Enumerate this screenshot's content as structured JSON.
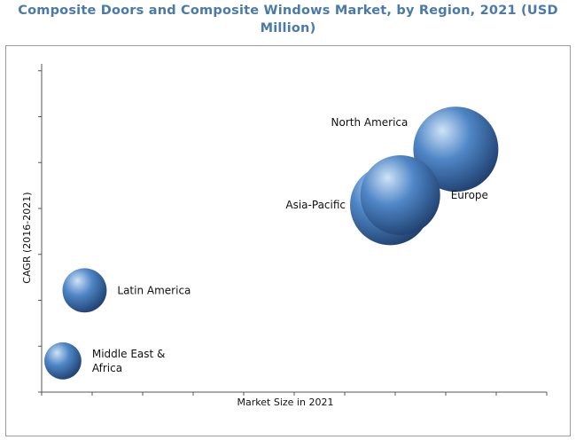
{
  "chart_data": {
    "type": "bubble",
    "title": "Composite Doors and Composite Windows Market, by Region, 2021 (USD Million)",
    "xlabel": "Market Size in 2021",
    "ylabel": "CAGR (2016-2021)",
    "xlim": [
      0,
      100
    ],
    "ylim": [
      0,
      100
    ],
    "gridlines": false,
    "series": [
      {
        "name": "North America",
        "x": 82,
        "y": 74,
        "size": 100,
        "label_position": "left"
      },
      {
        "name": "Europe",
        "x": 71,
        "y": 60,
        "size": 88,
        "label_position": "right"
      },
      {
        "name": "Asia-Pacific",
        "x": 69,
        "y": 57,
        "size": 89,
        "label_position": "left"
      },
      {
        "name": "Latin America",
        "x": 8.5,
        "y": 31,
        "size": 27,
        "label_position": "right"
      },
      {
        "name": "Middle East &\nAfrica",
        "x": 4.2,
        "y": 9.5,
        "size": 19,
        "label_position": "right"
      }
    ],
    "colors": {
      "bubble_light": "#cfe3f7",
      "bubble_mid": "#4f86c6",
      "bubble_dark": "#1f3f6e",
      "title": "#4a7aaa",
      "axis": "#555555"
    }
  }
}
